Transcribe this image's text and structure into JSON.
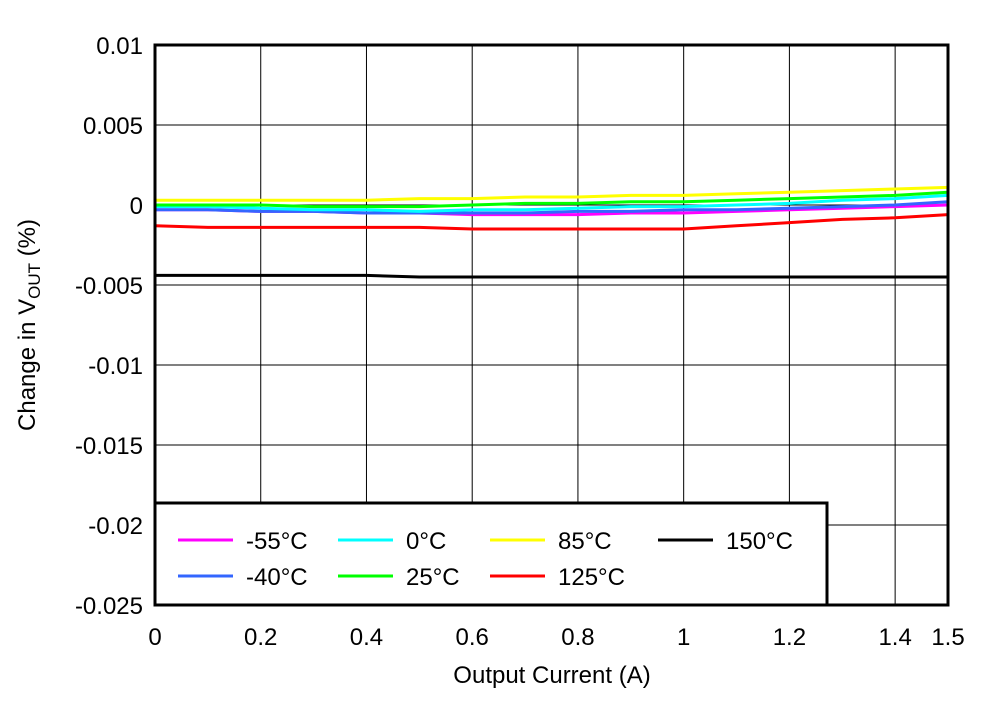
{
  "chart_data": {
    "type": "line",
    "xlabel": "Output Current (A)",
    "ylabel": "Change in V",
    "ylabel_sub": "OUT",
    "ylabel_suffix": " (%)",
    "xlim": [
      0,
      1.5
    ],
    "ylim": [
      -0.025,
      0.01
    ],
    "xticks": [
      0,
      0.2,
      0.4,
      0.6,
      0.8,
      1,
      1.2,
      1.4,
      1.5
    ],
    "xtick_labels": [
      "0",
      "0.2",
      "0.4",
      "0.6",
      "0.8",
      "1",
      "1.2",
      "1.4",
      "1.5"
    ],
    "yticks": [
      0.01,
      0.005,
      0,
      -0.005,
      -0.01,
      -0.015,
      -0.02,
      -0.025
    ],
    "ytick_labels": [
      "0.01",
      "0.005",
      "0",
      "-0.005",
      "-0.01",
      "-0.015",
      "-0.02",
      "-0.025"
    ],
    "grid": true,
    "legend_position": "bottom-left",
    "x": [
      0,
      0.1,
      0.2,
      0.3,
      0.4,
      0.5,
      0.6,
      0.7,
      0.8,
      0.9,
      1.0,
      1.1,
      1.2,
      1.3,
      1.4,
      1.5
    ],
    "series": [
      {
        "name": "-55°C",
        "color": "#ff00ff",
        "values": [
          -0.0003,
          -0.0003,
          -0.0004,
          -0.0004,
          -0.0005,
          -0.0005,
          -0.0006,
          -0.0006,
          -0.0006,
          -0.0005,
          -0.0005,
          -0.0004,
          -0.0003,
          -0.0002,
          -0.0001,
          0.0
        ]
      },
      {
        "name": "-40°C",
        "color": "#3366ff",
        "values": [
          -0.0003,
          -0.0003,
          -0.0004,
          -0.0004,
          -0.0005,
          -0.0005,
          -0.0005,
          -0.0005,
          -0.0004,
          -0.0004,
          -0.0003,
          -0.0003,
          -0.0002,
          -0.0001,
          0.0,
          0.0002
        ]
      },
      {
        "name": "0°C",
        "color": "#00ffff",
        "values": [
          -0.0001,
          -0.0001,
          -0.0002,
          -0.0003,
          -0.0003,
          -0.0004,
          -0.0003,
          -0.0003,
          -0.0002,
          -0.0001,
          -0.0001,
          0.0,
          0.0001,
          0.0003,
          0.0004,
          0.0006
        ]
      },
      {
        "name": "25°C",
        "color": "#00ff00",
        "values": [
          0.0,
          0.0,
          0.0,
          -0.0001,
          -0.0001,
          -0.0001,
          0.0,
          0.0001,
          0.0001,
          0.0002,
          0.0002,
          0.0003,
          0.0004,
          0.0005,
          0.0006,
          0.0008
        ]
      },
      {
        "name": "85°C",
        "color": "#ffff00",
        "values": [
          0.0003,
          0.0003,
          0.0003,
          0.0003,
          0.0003,
          0.0004,
          0.0004,
          0.0005,
          0.0005,
          0.0006,
          0.0006,
          0.0007,
          0.0008,
          0.0009,
          0.001,
          0.0011
        ]
      },
      {
        "name": "125°C",
        "color": "#ff0000",
        "values": [
          -0.0013,
          -0.0014,
          -0.0014,
          -0.0014,
          -0.0014,
          -0.0014,
          -0.0015,
          -0.0015,
          -0.0015,
          -0.0015,
          -0.0015,
          -0.0013,
          -0.0011,
          -0.0009,
          -0.0008,
          -0.0006
        ]
      },
      {
        "name": "150°C",
        "color": "#000000",
        "values": [
          -0.0044,
          -0.0044,
          -0.0044,
          -0.0044,
          -0.0044,
          -0.0045,
          -0.0045,
          -0.0045,
          -0.0045,
          -0.0045,
          -0.0045,
          -0.0045,
          -0.0045,
          -0.0045,
          -0.0045,
          -0.0045
        ]
      }
    ]
  }
}
